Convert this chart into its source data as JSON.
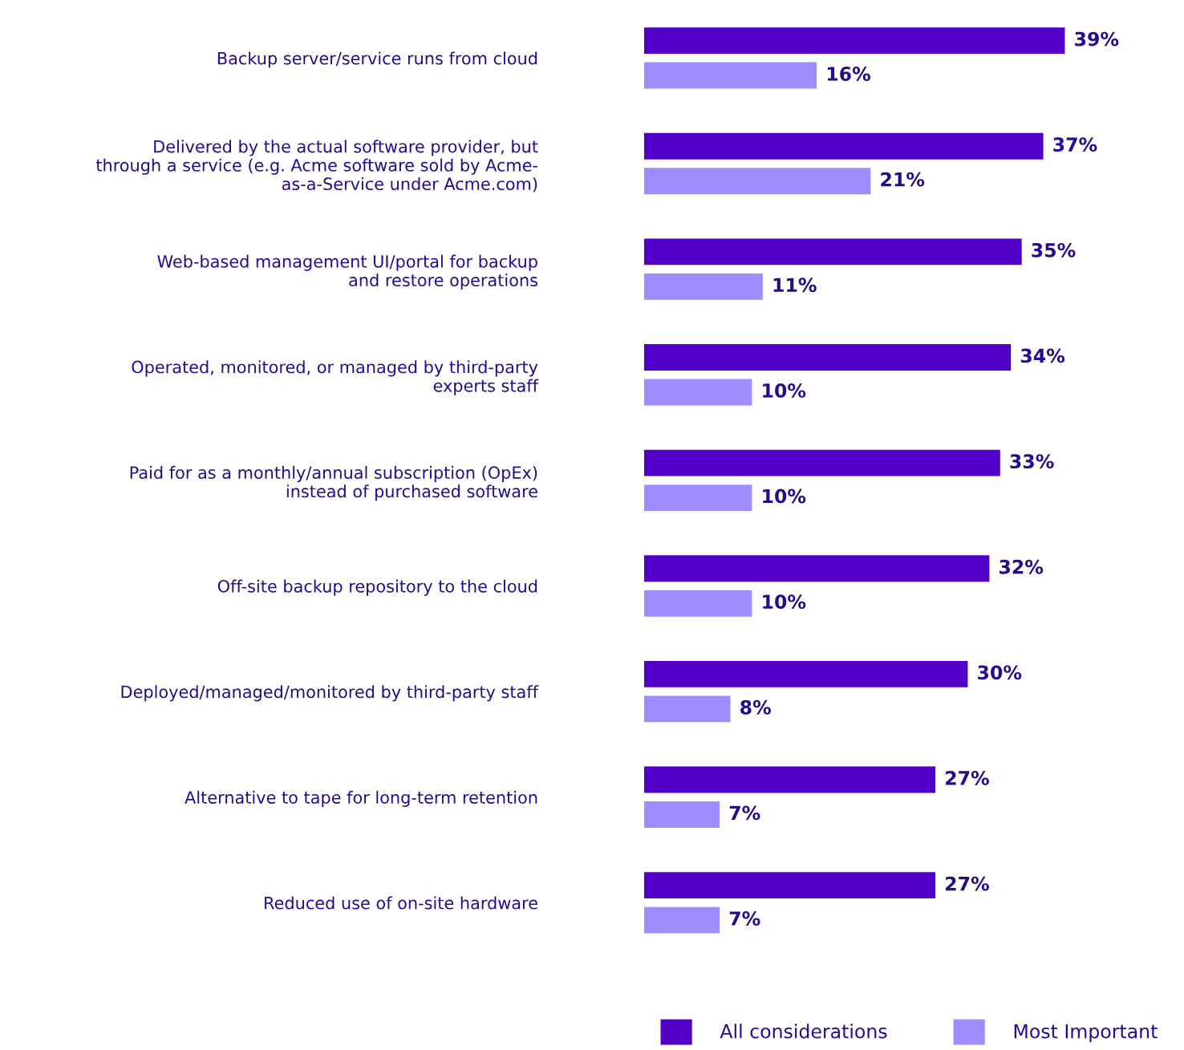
{
  "chart_data": {
    "type": "bar",
    "orientation": "horizontal",
    "categories": [
      "Backup server/service runs from cloud",
      "Delivered by the actual software provider, but\nthrough a service (e.g. Acme software sold by Acme-\nas-a-Service under Acme.com)",
      "Web-based management UI/portal for backup\nand restore operations",
      "Operated, monitored, or managed by third-party\nexperts staff",
      "Paid for as a monthly/annual subscription (OpEx)\ninstead of purchased software",
      "Off-site backup repository to the cloud",
      "Deployed/managed/monitored by third-party staff",
      "Alternative to tape for long-term retention",
      "Reduced use of on-site hardware"
    ],
    "series": [
      {
        "name": "All considerations",
        "color": "#5200c8",
        "values": [
          39,
          37,
          35,
          34,
          33,
          32,
          30,
          27,
          27
        ],
        "value_labels": [
          "39%",
          "37%",
          "35%",
          "34%",
          "33%",
          "32%",
          "30%",
          "27%",
          "27%"
        ]
      },
      {
        "name": "Most Important",
        "color": "#a08cff",
        "values": [
          16,
          21,
          11,
          10,
          10,
          10,
          8,
          7,
          7
        ],
        "value_labels": [
          "16%",
          "21%",
          "11%",
          "10%",
          "10%",
          "10%",
          "8%",
          "7%",
          "7%"
        ]
      }
    ],
    "legend": "bottom",
    "grid": false
  }
}
